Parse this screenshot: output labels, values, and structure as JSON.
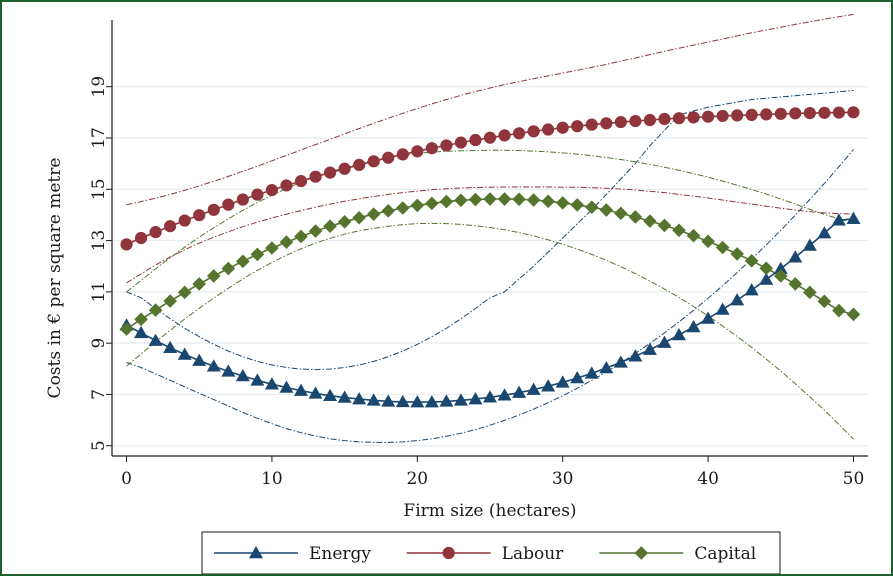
{
  "chart_data": {
    "type": "line",
    "xlabel": "Firm size (hectares)",
    "ylabel": "Costs in € per square metre",
    "xlim": [
      -1,
      51
    ],
    "ylim": [
      4.6,
      21.6
    ],
    "xticks": [
      "0",
      "10",
      "20",
      "30",
      "40",
      "50"
    ],
    "yticks": [
      "5",
      "7",
      "9",
      "11",
      "13",
      "15",
      "17",
      "19"
    ],
    "grid": true,
    "legend_position": "bottom",
    "x": [
      0,
      1,
      2,
      3,
      4,
      5,
      6,
      7,
      8,
      9,
      10,
      11,
      12,
      13,
      14,
      15,
      16,
      17,
      18,
      19,
      20,
      21,
      22,
      23,
      24,
      25,
      26,
      27,
      28,
      29,
      30,
      31,
      32,
      33,
      34,
      35,
      36,
      37,
      38,
      39,
      40,
      41,
      42,
      43,
      44,
      45,
      46,
      47,
      48,
      49,
      50
    ],
    "series": [
      {
        "name": "Energy",
        "color": "#1a476f",
        "marker": "triangle",
        "values": [
          9.7,
          9.4,
          9.1,
          8.82,
          8.56,
          8.32,
          8.1,
          7.9,
          7.72,
          7.55,
          7.4,
          7.27,
          7.15,
          7.04,
          6.95,
          6.88,
          6.82,
          6.77,
          6.73,
          6.71,
          6.7,
          6.7,
          6.73,
          6.77,
          6.82,
          6.89,
          6.97,
          7.07,
          7.19,
          7.32,
          7.47,
          7.64,
          7.82,
          8.03,
          8.25,
          8.49,
          8.75,
          9.02,
          9.32,
          9.63,
          9.96,
          10.31,
          10.68,
          11.07,
          11.48,
          11.9,
          12.35,
          12.81,
          13.29,
          13.79,
          13.85
        ],
        "ci_upper": [
          11.0,
          10.77,
          10.35,
          9.95,
          9.58,
          9.25,
          8.95,
          8.69,
          8.47,
          8.29,
          8.15,
          8.05,
          7.99,
          7.97,
          7.99,
          8.05,
          8.15,
          8.29,
          8.47,
          8.69,
          8.95,
          9.25,
          9.58,
          9.95,
          10.35,
          10.77,
          11.0,
          11.5,
          12.0,
          12.55,
          13.1,
          13.65,
          14.2,
          14.8,
          15.4,
          16.0,
          16.7,
          17.3,
          17.9,
          18.05,
          18.2,
          18.3,
          18.4,
          18.5,
          18.55,
          18.6,
          18.65,
          18.7,
          18.75,
          18.8,
          18.85
        ],
        "ci_lower": [
          8.25,
          8.05,
          7.8,
          7.55,
          7.3,
          7.05,
          6.8,
          6.55,
          6.3,
          6.07,
          5.86,
          5.67,
          5.51,
          5.38,
          5.27,
          5.2,
          5.15,
          5.13,
          5.13,
          5.15,
          5.2,
          5.27,
          5.37,
          5.49,
          5.63,
          5.8,
          5.99,
          6.2,
          6.43,
          6.68,
          6.95,
          7.24,
          7.55,
          7.88,
          8.23,
          8.6,
          8.99,
          9.4,
          9.83,
          10.28,
          10.75,
          11.24,
          11.75,
          12.28,
          12.83,
          13.4,
          13.99,
          14.6,
          15.23,
          15.88,
          16.55
        ]
      },
      {
        "name": "Labour",
        "color": "#90353b",
        "marker": "circle",
        "values": [
          12.85,
          13.1,
          13.33,
          13.56,
          13.78,
          13.99,
          14.2,
          14.4,
          14.6,
          14.79,
          14.97,
          15.15,
          15.32,
          15.49,
          15.65,
          15.8,
          15.95,
          16.09,
          16.23,
          16.36,
          16.48,
          16.6,
          16.71,
          16.82,
          16.92,
          17.01,
          17.1,
          17.18,
          17.26,
          17.33,
          17.4,
          17.46,
          17.52,
          17.57,
          17.62,
          17.66,
          17.7,
          17.74,
          17.77,
          17.8,
          17.83,
          17.86,
          17.88,
          17.9,
          17.92,
          17.94,
          17.96,
          17.97,
          17.98,
          17.99,
          18.0
        ],
        "ci_upper": [
          14.4,
          14.52,
          14.65,
          14.8,
          14.96,
          15.13,
          15.31,
          15.5,
          15.7,
          15.9,
          16.11,
          16.32,
          16.53,
          16.74,
          16.95,
          17.16,
          17.37,
          17.57,
          17.77,
          17.96,
          18.15,
          18.33,
          18.5,
          18.66,
          18.81,
          18.95,
          19.08,
          19.2,
          19.31,
          19.42,
          19.53,
          19.64,
          19.75,
          19.87,
          20.0,
          20.12,
          20.25,
          20.38,
          20.5,
          20.62,
          20.74,
          20.86,
          20.98,
          21.1,
          21.21,
          21.32,
          21.43,
          21.53,
          21.63,
          21.73,
          21.82
        ],
        "ci_lower": [
          11.35,
          11.7,
          12.05,
          12.36,
          12.64,
          12.9,
          13.13,
          13.34,
          13.54,
          13.72,
          13.88,
          14.03,
          14.17,
          14.3,
          14.42,
          14.53,
          14.63,
          14.72,
          14.8,
          14.87,
          14.93,
          14.98,
          15.02,
          15.05,
          15.07,
          15.08,
          15.09,
          15.09,
          15.09,
          15.09,
          15.08,
          15.08,
          15.06,
          15.04,
          15.01,
          14.97,
          14.92,
          14.87,
          14.8,
          14.73,
          14.66,
          14.58,
          14.5,
          14.42,
          14.34,
          14.26,
          14.19,
          14.13,
          14.08,
          14.05,
          14.03
        ]
      },
      {
        "name": "Capital",
        "color": "#55752f",
        "marker": "diamond",
        "values": [
          9.55,
          9.93,
          10.29,
          10.64,
          10.98,
          11.31,
          11.62,
          11.91,
          12.19,
          12.46,
          12.71,
          12.94,
          13.16,
          13.37,
          13.56,
          13.73,
          13.89,
          14.03,
          14.16,
          14.27,
          14.37,
          14.45,
          14.52,
          14.57,
          14.6,
          14.62,
          14.62,
          14.61,
          14.58,
          14.53,
          14.47,
          14.39,
          14.3,
          14.19,
          14.06,
          13.92,
          13.76,
          13.59,
          13.4,
          13.19,
          12.97,
          12.73,
          12.48,
          12.21,
          11.92,
          11.62,
          11.31,
          10.98,
          10.63,
          10.27,
          10.12
        ],
        "ci_upper": [
          11.0,
          11.45,
          11.9,
          12.33,
          12.74,
          13.13,
          13.5,
          13.85,
          14.18,
          14.49,
          14.77,
          15.03,
          15.27,
          15.49,
          15.68,
          15.85,
          16.0,
          16.13,
          16.24,
          16.33,
          16.4,
          16.45,
          16.48,
          16.5,
          16.51,
          16.52,
          16.52,
          16.51,
          16.49,
          16.46,
          16.42,
          16.37,
          16.31,
          16.24,
          16.16,
          16.07,
          15.97,
          15.86,
          15.74,
          15.61,
          15.47,
          15.32,
          15.16,
          14.99,
          14.81,
          14.62,
          14.42,
          14.22,
          14.02,
          13.85,
          13.7
        ],
        "ci_lower": [
          8.1,
          8.58,
          9.05,
          9.5,
          9.94,
          10.36,
          10.76,
          11.14,
          11.5,
          11.84,
          12.15,
          12.43,
          12.68,
          12.9,
          13.09,
          13.25,
          13.38,
          13.48,
          13.56,
          13.62,
          13.66,
          13.67,
          13.66,
          13.63,
          13.58,
          13.51,
          13.42,
          13.31,
          13.18,
          13.03,
          12.86,
          12.67,
          12.46,
          12.23,
          11.98,
          11.71,
          11.42,
          11.11,
          10.78,
          10.43,
          10.06,
          9.67,
          9.26,
          8.83,
          8.38,
          7.91,
          7.42,
          6.91,
          6.38,
          5.83,
          5.26
        ]
      }
    ]
  }
}
